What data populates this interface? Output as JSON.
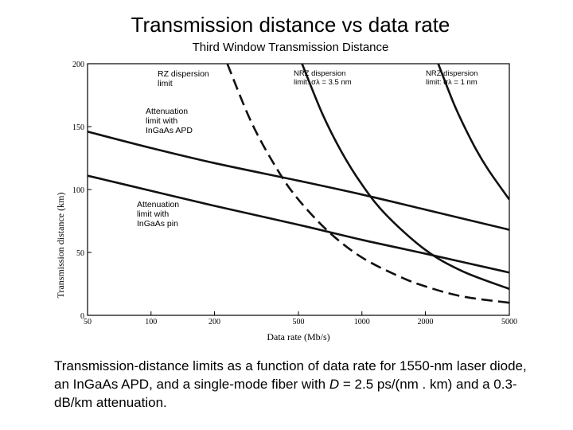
{
  "slide": {
    "title": "Transmission distance vs data rate",
    "subtitle": "Third Window Transmission Distance"
  },
  "caption": {
    "part1": "Transmission-distance limits as a function of data rate for 1550-nm laser diode, an InGaAs APD, and a single-mode fiber with ",
    "d_symbol": "D",
    "part2": " = 2.5 ps/(nm . km) and a 0.3-dB/km attenuation."
  },
  "chart_data": {
    "type": "line",
    "xlabel": "Data rate (Mb/s)",
    "ylabel": "Transmission distance (km)",
    "xscale": "log",
    "xlim": [
      50,
      5000
    ],
    "ylim": [
      0,
      200
    ],
    "x_ticks": [
      50,
      100,
      200,
      500,
      1000,
      2000,
      5000
    ],
    "y_ticks": [
      0,
      50,
      100,
      150,
      200
    ],
    "grid": false,
    "series": [
      {
        "name": "Attenuation limit with InGaAs APD",
        "style": "solid",
        "points": [
          [
            50,
            146
          ],
          [
            100,
            133
          ],
          [
            200,
            121
          ],
          [
            500,
            107
          ],
          [
            1000,
            96
          ],
          [
            2000,
            84
          ],
          [
            5000,
            68
          ]
        ]
      },
      {
        "name": "Attenuation limit with InGaAs pin",
        "style": "solid",
        "points": [
          [
            50,
            111
          ],
          [
            100,
            99
          ],
          [
            200,
            87
          ],
          [
            500,
            72
          ],
          [
            1000,
            60
          ],
          [
            2000,
            49
          ],
          [
            5000,
            34
          ]
        ]
      },
      {
        "name": "RZ dispersion limit",
        "style": "dashed",
        "points": [
          [
            230,
            200
          ],
          [
            300,
            153
          ],
          [
            400,
            115
          ],
          [
            500,
            92
          ],
          [
            700,
            66
          ],
          [
            1000,
            46
          ],
          [
            1500,
            31
          ],
          [
            2000,
            23
          ],
          [
            3000,
            15
          ],
          [
            5000,
            10
          ]
        ]
      },
      {
        "name": "NRZ dispersion limit: σλ = 3.5 nm",
        "style": "solid",
        "points": [
          [
            520,
            200
          ],
          [
            650,
            160
          ],
          [
            800,
            130
          ],
          [
            1000,
            104
          ],
          [
            1300,
            80
          ],
          [
            2000,
            52
          ],
          [
            3000,
            35
          ],
          [
            5000,
            21
          ]
        ]
      },
      {
        "name": "NRZ dispersion limit: σλ = 1 nm",
        "style": "solid",
        "points": [
          [
            2300,
            200
          ],
          [
            2700,
            170
          ],
          [
            3000,
            153
          ],
          [
            3500,
            131
          ],
          [
            4000,
            115
          ],
          [
            5000,
            92
          ]
        ]
      }
    ],
    "annotations": [
      {
        "id": "rz",
        "lines": [
          "RZ dispersion",
          "limit"
        ]
      },
      {
        "id": "apd",
        "lines": [
          "Attenuation",
          "limit with",
          "InGaAs APD"
        ]
      },
      {
        "id": "pin",
        "lines": [
          "Attenuation",
          "limit with",
          "InGaAs pin"
        ]
      },
      {
        "id": "nrz35",
        "lines": [
          "NRZ dispersion",
          "limit: σλ = 3.5 nm"
        ]
      },
      {
        "id": "nrz1",
        "lines": [
          "NRZ dispersion",
          "limit: σλ = 1 nm"
        ]
      }
    ]
  }
}
